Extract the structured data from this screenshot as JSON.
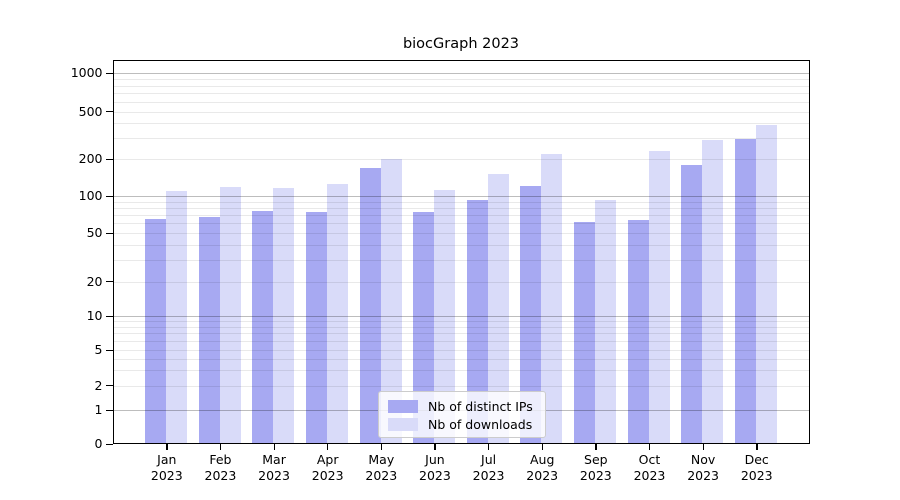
{
  "title": "biocGraph 2023",
  "chart_data": {
    "type": "bar",
    "title": "biocGraph 2023",
    "categories": [
      "Jan",
      "Feb",
      "Mar",
      "Apr",
      "May",
      "Jun",
      "Jul",
      "Aug",
      "Sep",
      "Oct",
      "Nov",
      "Dec"
    ],
    "year_label": "2023",
    "series": [
      {
        "name": "Nb of distinct IPs",
        "color": "#a7a9f2",
        "values": [
          65,
          68,
          76,
          74,
          170,
          74,
          93,
          120,
          62,
          64,
          180,
          298
        ]
      },
      {
        "name": "Nb of downloads",
        "color": "#d9dbf9",
        "values": [
          110,
          119,
          116,
          125,
          200,
          112,
          152,
          220,
          93,
          235,
          290,
          385
        ]
      }
    ],
    "xlabel": "",
    "ylabel": "",
    "y_axis": {
      "scale": "log-like",
      "tick_values": [
        0,
        1,
        2,
        5,
        10,
        20,
        50,
        100,
        200,
        500,
        1000
      ],
      "range": [
        0,
        1000
      ]
    },
    "grid": "horizontal major decade lines + faint minor lines, drawn over bars",
    "legend": {
      "position": "bottom-center",
      "entries": [
        "Nb of distinct IPs",
        "Nb of downloads"
      ]
    },
    "colors": {
      "ips_bar": "#a7a9f2",
      "downloads_bar": "#d9dbf9",
      "frame": "#000000",
      "background": "#ffffff"
    }
  }
}
